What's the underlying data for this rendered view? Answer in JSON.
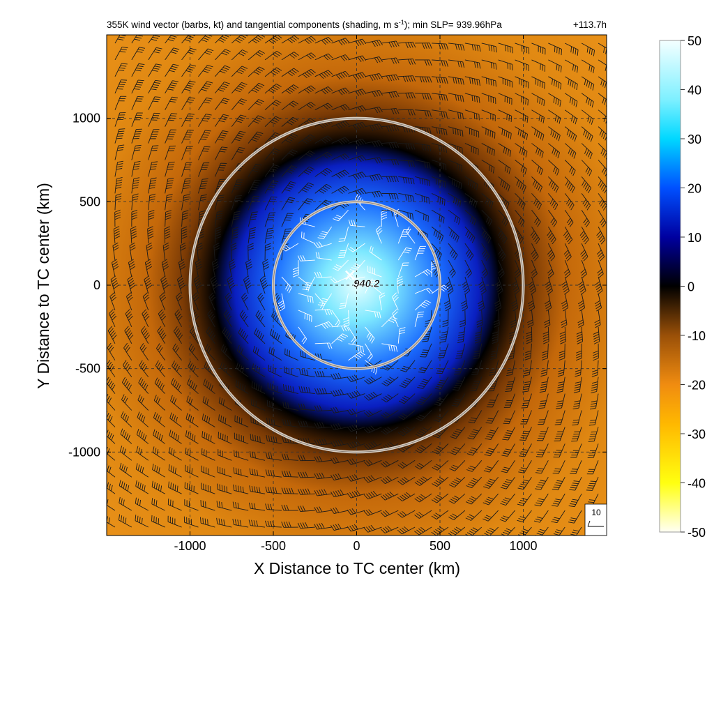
{
  "chart_data": {
    "type": "heatmap",
    "title_main": "355K wind vector (barbs, kt) and tangential components (shading, m s",
    "title_sup": "-1",
    "title_after": "); min SLP= 939.96hPa",
    "title_time": "+113.7h",
    "xlabel": "X Distance to TC center (km)",
    "ylabel": "Y Distance to TC center (km)",
    "xlim": [
      -1500,
      1500
    ],
    "ylim": [
      -1500,
      1500
    ],
    "xticks": [
      -1000,
      -500,
      0,
      500,
      1000
    ],
    "yticks": [
      -1000,
      -500,
      0,
      500,
      1000
    ],
    "xtick_labels": [
      "-1000",
      "-500",
      "0",
      "500",
      "1000"
    ],
    "ytick_labels": [
      "-1000",
      "-500",
      "0",
      "500",
      "1000"
    ],
    "grid": true,
    "grid_style": "dashed",
    "colorbar": {
      "range": [
        -50,
        50
      ],
      "ticks": [
        50,
        40,
        30,
        20,
        10,
        0,
        -10,
        -20,
        -30,
        -40,
        -50
      ],
      "tick_labels": [
        "50",
        "40",
        "30",
        "20",
        "10",
        "0",
        "-10",
        "-20",
        "-30",
        "-40",
        "-50"
      ],
      "colors": [
        "#fffff0",
        "#ffff00",
        "#ffc000",
        "#f08e0c",
        "#c86e10",
        "#000000",
        "#0000cc",
        "#0030ff",
        "#00a0ff",
        "#00e0ff",
        "#f0ffff"
      ]
    },
    "field_description": {
      "center_value": 40,
      "zero_radius_km": 470,
      "outer_value": -18
    },
    "rings_km": [
      500,
      1000
    ],
    "center": {
      "x": -40,
      "y": 60,
      "marker": "×"
    },
    "center_label": "940.2",
    "barb_spacing_km": 100,
    "reference_vector": {
      "label": "10"
    }
  }
}
